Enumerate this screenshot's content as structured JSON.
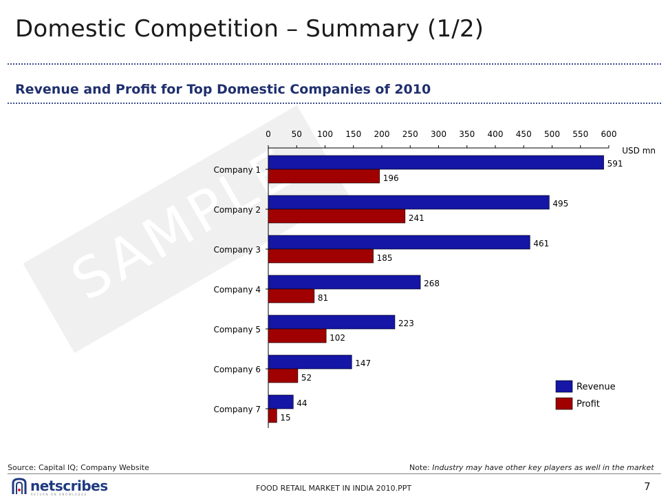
{
  "page": {
    "title": "Domestic Competition – Summary (1/2)",
    "subtitle": "Revenue and Profit for Top Domestic Companies of 2010",
    "watermark": "SAMPLE",
    "source": "Source: Capital IQ; Company Website",
    "note_label": "Note:",
    "note_text": "Industry may have other key players as well in the market",
    "footer": "FOOD RETAIL MARKET IN INDIA 2010.PPT",
    "page_number": "7",
    "logo_text": "netscribes",
    "logo_tagline": "RETURN ON KNOWLEDGE"
  },
  "colors": {
    "revenue": "#1515a6",
    "profit": "#a00000",
    "title": "#1a1a1a",
    "subtitle": "#1f2f6e"
  },
  "chart_data": {
    "type": "bar",
    "orientation": "horizontal",
    "title": "Revenue and Profit for Top Domestic Companies of 2010",
    "unit_label": "USD mn",
    "categories": [
      "Company 1",
      "Company 2",
      "Company 3",
      "Company 4",
      "Company 5",
      "Company 6",
      "Company 7"
    ],
    "series": [
      {
        "name": "Revenue",
        "values": [
          591,
          495,
          461,
          268,
          223,
          147,
          44
        ]
      },
      {
        "name": "Profit",
        "values": [
          196,
          241,
          185,
          81,
          102,
          52,
          15
        ]
      }
    ],
    "xlim": [
      0,
      600
    ],
    "ticks": [
      0,
      50,
      100,
      150,
      200,
      250,
      300,
      350,
      400,
      450,
      500,
      550,
      600
    ],
    "axis_position": "top",
    "legend_position": "bottom-right",
    "grid": false
  }
}
